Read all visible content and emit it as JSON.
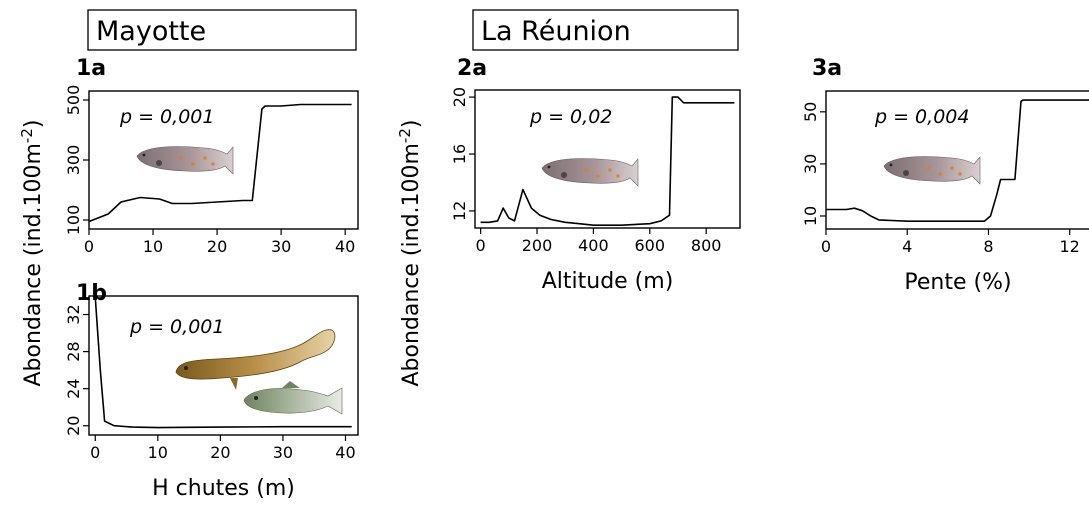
{
  "regions": [
    {
      "label": "Mayotte"
    },
    {
      "label": "La Réunion"
    }
  ],
  "y_label_left": "Abondance (ind.100m",
  "y_label_right": "Abondance (ind.100m",
  "y_label_exp": "-2",
  "y_label_close": ")",
  "chart_data": [
    {
      "panel": "1a",
      "type": "line",
      "annotation": "p = 0,001",
      "xlim": [
        0,
        42
      ],
      "ylim": [
        70,
        530
      ],
      "xticks": [
        0,
        10,
        20,
        30,
        40
      ],
      "yticks": [
        100,
        300,
        500
      ],
      "xlabel": "",
      "fish": "sicydium",
      "x": [
        0,
        3,
        5,
        8,
        11,
        13,
        16,
        20,
        24,
        25.5,
        27,
        27.5,
        30,
        33,
        36,
        41
      ],
      "y": [
        95,
        120,
        160,
        175,
        170,
        155,
        155,
        160,
        165,
        165,
        470,
        480,
        480,
        485,
        485,
        485
      ]
    },
    {
      "panel": "1b",
      "type": "line",
      "annotation": "p = 0,001",
      "xlim": [
        -1,
        42
      ],
      "ylim": [
        19,
        34
      ],
      "xticks": [
        0,
        10,
        20,
        30,
        40
      ],
      "yticks": [
        20,
        24,
        28,
        32
      ],
      "xlabel": "H chutes (m)",
      "fish": "eel_goby",
      "x": [
        0,
        0.8,
        1.5,
        3,
        6,
        10,
        20,
        30,
        41
      ],
      "y": [
        33.8,
        26,
        20.5,
        20,
        19.85,
        19.8,
        19.85,
        19.9,
        19.9
      ]
    },
    {
      "panel": "2a",
      "type": "line",
      "annotation": "p = 0,02",
      "xlim": [
        -20,
        920
      ],
      "ylim": [
        10.8,
        20.5
      ],
      "xticks": [
        0,
        200,
        400,
        600,
        800
      ],
      "yticks": [
        12,
        16,
        20
      ],
      "xlabel": "Altitude (m)",
      "fish": "sicydium",
      "x": [
        0,
        30,
        60,
        80,
        100,
        120,
        150,
        180,
        210,
        250,
        300,
        350,
        400,
        500,
        600,
        640,
        670,
        680,
        700,
        720,
        750,
        900
      ],
      "y": [
        11.2,
        11.2,
        11.3,
        12.2,
        11.5,
        11.3,
        13.5,
        12.2,
        11.7,
        11.4,
        11.2,
        11.1,
        11.0,
        11.0,
        11.1,
        11.3,
        11.7,
        20,
        20,
        19.6,
        19.6,
        19.6
      ]
    },
    {
      "panel": "3a",
      "type": "line",
      "annotation": "p = 0,004",
      "xlim": [
        0,
        13
      ],
      "ylim": [
        5,
        58
      ],
      "xticks": [
        0,
        4,
        8,
        12
      ],
      "yticks": [
        10,
        30,
        50
      ],
      "xlabel": "Pente (%)",
      "fish": "sicydium",
      "x": [
        0,
        1,
        1.4,
        1.8,
        2.2,
        2.6,
        4,
        6,
        7.8,
        8.1,
        8.4,
        8.6,
        9.3,
        9.6,
        9.7,
        13
      ],
      "y": [
        12.5,
        12.5,
        13,
        12,
        10,
        8.5,
        8,
        8,
        8,
        10,
        18,
        24,
        24,
        54,
        54.5,
        54.5
      ]
    }
  ]
}
